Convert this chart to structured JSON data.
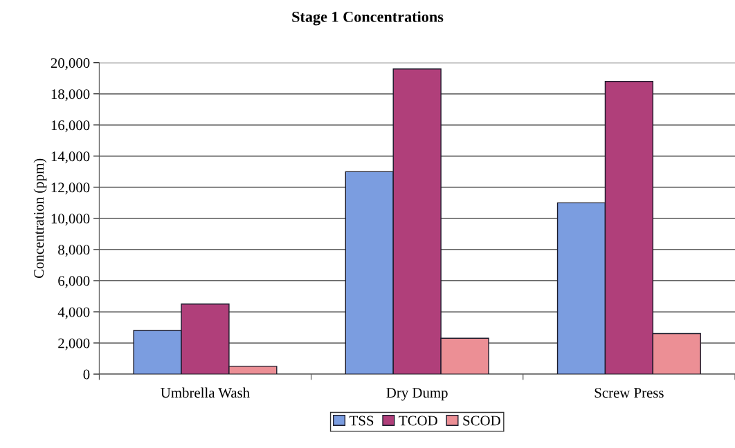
{
  "chart_data": {
    "type": "bar",
    "title": "Stage 1 Concentrations",
    "ylabel": "Concentration (ppm)",
    "categories": [
      "Umbrella Wash",
      "Dry Dump",
      "Screw Press"
    ],
    "series": [
      {
        "name": "TSS",
        "color": "#7b9de0",
        "values": [
          2800,
          13000,
          11000
        ]
      },
      {
        "name": "TCOD",
        "color": "#b03f7a",
        "values": [
          4500,
          19600,
          18800
        ]
      },
      {
        "name": "SCOD",
        "color": "#ec8f95",
        "values": [
          500,
          2300,
          2600
        ]
      }
    ],
    "ylim": [
      0,
      20000
    ],
    "yticks": [
      {
        "value": 0,
        "label": "0"
      },
      {
        "value": 2000,
        "label": "2,000"
      },
      {
        "value": 4000,
        "label": "4,000"
      },
      {
        "value": 6000,
        "label": "6,000"
      },
      {
        "value": 8000,
        "label": "8,000"
      },
      {
        "value": 10000,
        "label": "10,000"
      },
      {
        "value": 12000,
        "label": "12,000"
      },
      {
        "value": 14000,
        "label": "14,000"
      },
      {
        "value": 16000,
        "label": "16,000"
      },
      {
        "value": 18000,
        "label": "18,000"
      },
      {
        "value": 20000,
        "label": "20,000"
      }
    ],
    "grid": "y",
    "legend": "bottom"
  }
}
